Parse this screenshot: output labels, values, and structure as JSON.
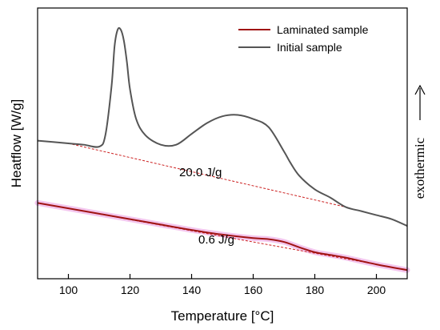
{
  "chart_data": {
    "type": "line",
    "xlabel": "Temperature [°C]",
    "ylabel": "Heatflow [W/g]",
    "side_label": "exothermic",
    "xlim": [
      90,
      210
    ],
    "ylim": [
      0,
      100
    ],
    "x_ticks": [
      100,
      120,
      140,
      160,
      180,
      200
    ],
    "y_ticks_shown": false,
    "grid": false,
    "legend_position": "top-right",
    "series": [
      {
        "name": "Laminated sample",
        "color": "#a01414",
        "style": "solid",
        "x": [
          90,
          100,
          110,
          120,
          130,
          140,
          150,
          160,
          165,
          170,
          175,
          180,
          185,
          190,
          200,
          210
        ],
        "y": [
          28,
          26,
          24,
          22,
          20,
          18,
          16.3,
          15,
          14.6,
          13.6,
          11.6,
          9.8,
          8.8,
          7.8,
          5.3,
          3.2
        ]
      },
      {
        "name": "Initial sample",
        "color": "#555555",
        "style": "solid",
        "x": [
          90,
          100,
          105,
          110,
          112,
          114,
          115,
          116,
          117,
          118,
          119,
          120,
          122,
          125,
          130,
          135,
          140,
          145,
          150,
          155,
          160,
          165,
          170,
          172,
          175,
          180,
          185,
          190,
          195,
          200,
          205,
          210
        ],
        "y": [
          51,
          50,
          49.5,
          48.8,
          53,
          71,
          86,
          92,
          92,
          88,
          80,
          70,
          59,
          53,
          49.5,
          49.5,
          53.5,
          57.5,
          60,
          60.5,
          59,
          56,
          47,
          43,
          38,
          33,
          30,
          26.5,
          25,
          23.5,
          22,
          19.5
        ]
      }
    ],
    "baselines": [
      {
        "color": "#cc2222",
        "style": "dashed",
        "x": [
          100,
          190
        ],
        "y": [
          50,
          26.5
        ]
      },
      {
        "color": "#cc2222",
        "style": "dashed",
        "x": [
          100,
          200
        ],
        "y": [
          26,
          5.3
        ]
      }
    ],
    "annotations": [
      "20.0 J/g",
      "0.6 J/g"
    ]
  }
}
